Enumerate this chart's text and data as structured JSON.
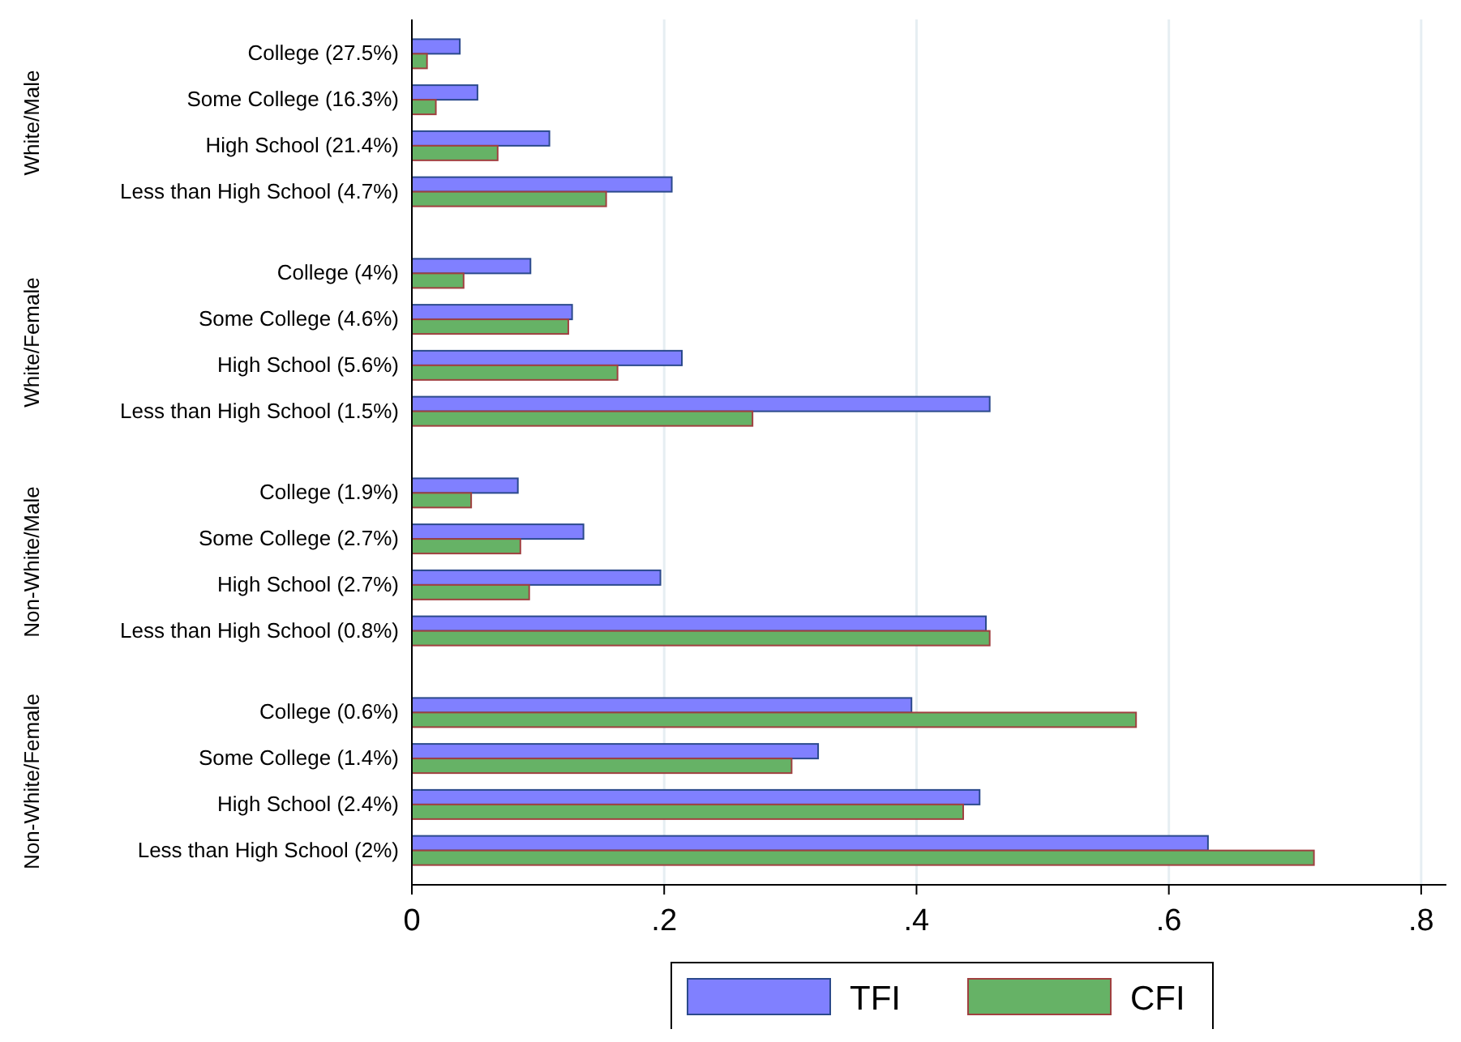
{
  "chart_data": {
    "type": "bar",
    "orientation": "horizontal",
    "categories": [
      "College (27.5%)",
      "Some College (16.3%)",
      "High School (21.4%)",
      "Less than High School (4.7%)",
      "College (4%)",
      "Some College (4.6%)",
      "High School (5.6%)",
      "Less than High School (1.5%)",
      "College (1.9%)",
      "Some College (2.7%)",
      "High School (2.7%)",
      "Less than High School (0.8%)",
      "College (0.6%)",
      "Some College (1.4%)",
      "High School (2.4%)",
      "Less than High School (2%)"
    ],
    "annotations": [
      "White/Male",
      "White/Female",
      "Non-White/Male",
      "Non-White/Female"
    ],
    "series": [
      {
        "name": "TFI",
        "color": "#8080ff",
        "values": [
          0.038,
          0.052,
          0.109,
          0.206,
          0.094,
          0.127,
          0.214,
          0.458,
          0.084,
          0.136,
          0.197,
          0.455,
          0.396,
          0.322,
          0.45,
          0.631
        ]
      },
      {
        "name": "CFI",
        "color": "#66b266",
        "values": [
          0.012,
          0.019,
          0.068,
          0.154,
          0.041,
          0.124,
          0.163,
          0.27,
          0.047,
          0.086,
          0.093,
          0.458,
          0.574,
          0.301,
          0.437,
          0.715
        ]
      }
    ],
    "xlim": [
      0,
      0.82
    ],
    "xticks": [
      0,
      {
        "value": 0.2,
        "label": ".2"
      },
      {
        "value": 0.4,
        "label": ".4"
      },
      {
        "value": 0.6,
        "label": ".6"
      },
      {
        "value": 0.8,
        "label": ".8"
      }
    ],
    "grid": "x",
    "legend": "bottom"
  }
}
